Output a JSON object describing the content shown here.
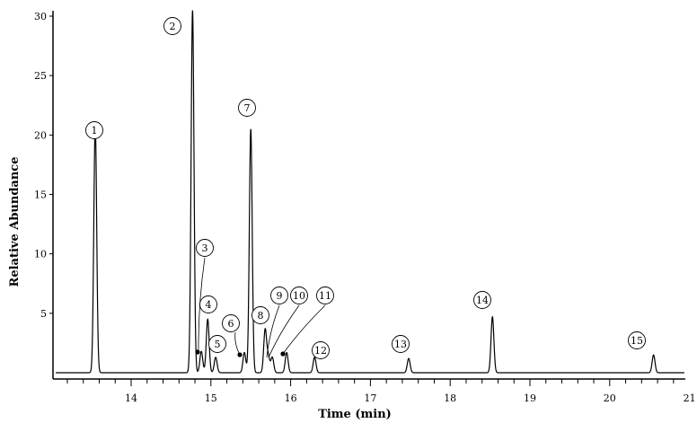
{
  "chart_data": {
    "type": "line",
    "title": "",
    "xlabel": "Time (min)",
    "ylabel": "Relative Abundance",
    "xlim": [
      13.0,
      21.15
    ],
    "ylim": [
      0,
      30.5
    ],
    "baseline": 0.0,
    "x_ticks": [
      14,
      15,
      16,
      17,
      18,
      19,
      20,
      21
    ],
    "y_ticks": [
      5,
      10,
      15,
      20,
      25,
      30
    ],
    "grid": false,
    "legend": "none",
    "line_color": "#000000",
    "peaks": [
      {
        "label": "1",
        "rt": 13.55,
        "height": 20.9
      },
      {
        "label": "2",
        "rt": 14.77,
        "height": 30.5
      },
      {
        "label": "3",
        "rt": 14.88,
        "height": 1.8
      },
      {
        "label": "4",
        "rt": 14.96,
        "height": 4.5
      },
      {
        "label": "5",
        "rt": 15.06,
        "height": 1.3
      },
      {
        "label": "6",
        "rt": 15.42,
        "height": 1.7
      },
      {
        "label": "7",
        "rt": 15.5,
        "height": 20.5
      },
      {
        "label": "8",
        "rt": 15.68,
        "height": 3.6
      },
      {
        "label": "9",
        "rt": 15.72,
        "height": 1.3
      },
      {
        "label": "10",
        "rt": 15.77,
        "height": 1.3
      },
      {
        "label": "11",
        "rt": 15.95,
        "height": 1.7
      },
      {
        "label": "12",
        "rt": 16.3,
        "height": 1.3
      },
      {
        "label": "13",
        "rt": 17.48,
        "height": 1.2
      },
      {
        "label": "14",
        "rt": 18.53,
        "height": 4.7
      },
      {
        "label": "15",
        "rt": 20.55,
        "height": 1.5
      }
    ]
  }
}
